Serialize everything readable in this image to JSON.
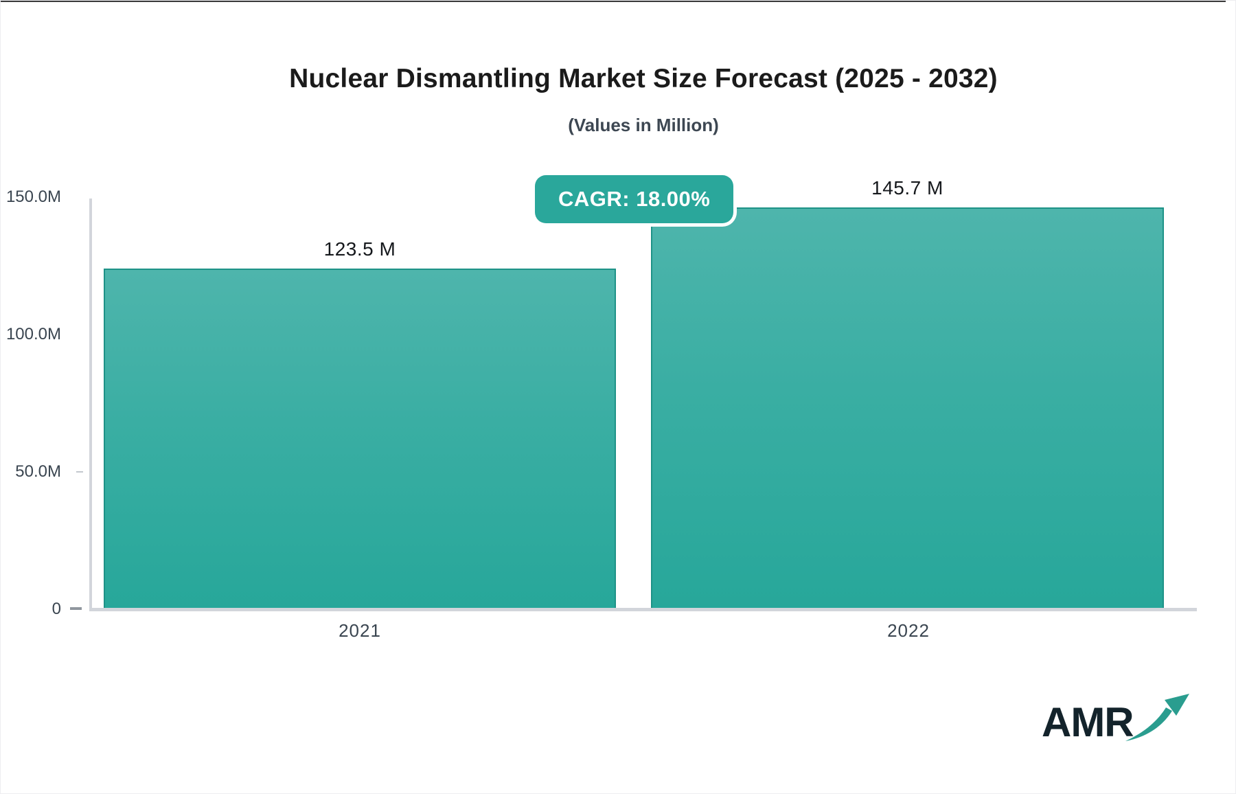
{
  "chart": {
    "title": "Nuclear Dismantling Market Size Forecast (2025 - 2032)",
    "subtitle": "(Values in Million)",
    "cagr_label": "CAGR: 18.00%",
    "logo_text": "AMR"
  },
  "chart_data": {
    "type": "bar",
    "title": "Nuclear Dismantling Market Size Forecast (2025 - 2032)",
    "subtitle": "(Values in Million)",
    "categories": [
      "2021",
      "2022"
    ],
    "values": [
      123.5,
      145.7
    ],
    "value_labels": [
      "123.5 M",
      "145.7 M"
    ],
    "unit": "Million",
    "cagr_percent": "18.00%",
    "xlabel": "",
    "ylabel": "",
    "ylim": [
      0,
      150
    ],
    "yticks": [
      0,
      50,
      100,
      150
    ],
    "ytick_labels": [
      "0",
      "50.0M",
      "100.0M",
      "150.0M"
    ],
    "grid": "off",
    "legend": "none",
    "colors": {
      "bar_gradient_top": "#4eb5ac",
      "bar_gradient_bottom": "#27a79a",
      "bar_border": "#1e9287",
      "badge_background": "#2aa79b",
      "badge_text": "#ffffff",
      "axis_line": "#d2d5db",
      "axis_text": "#3a4550",
      "title_text": "#1b1b1b",
      "logo_dark": "#13232b",
      "logo_teal": "#2a9d8f"
    }
  }
}
